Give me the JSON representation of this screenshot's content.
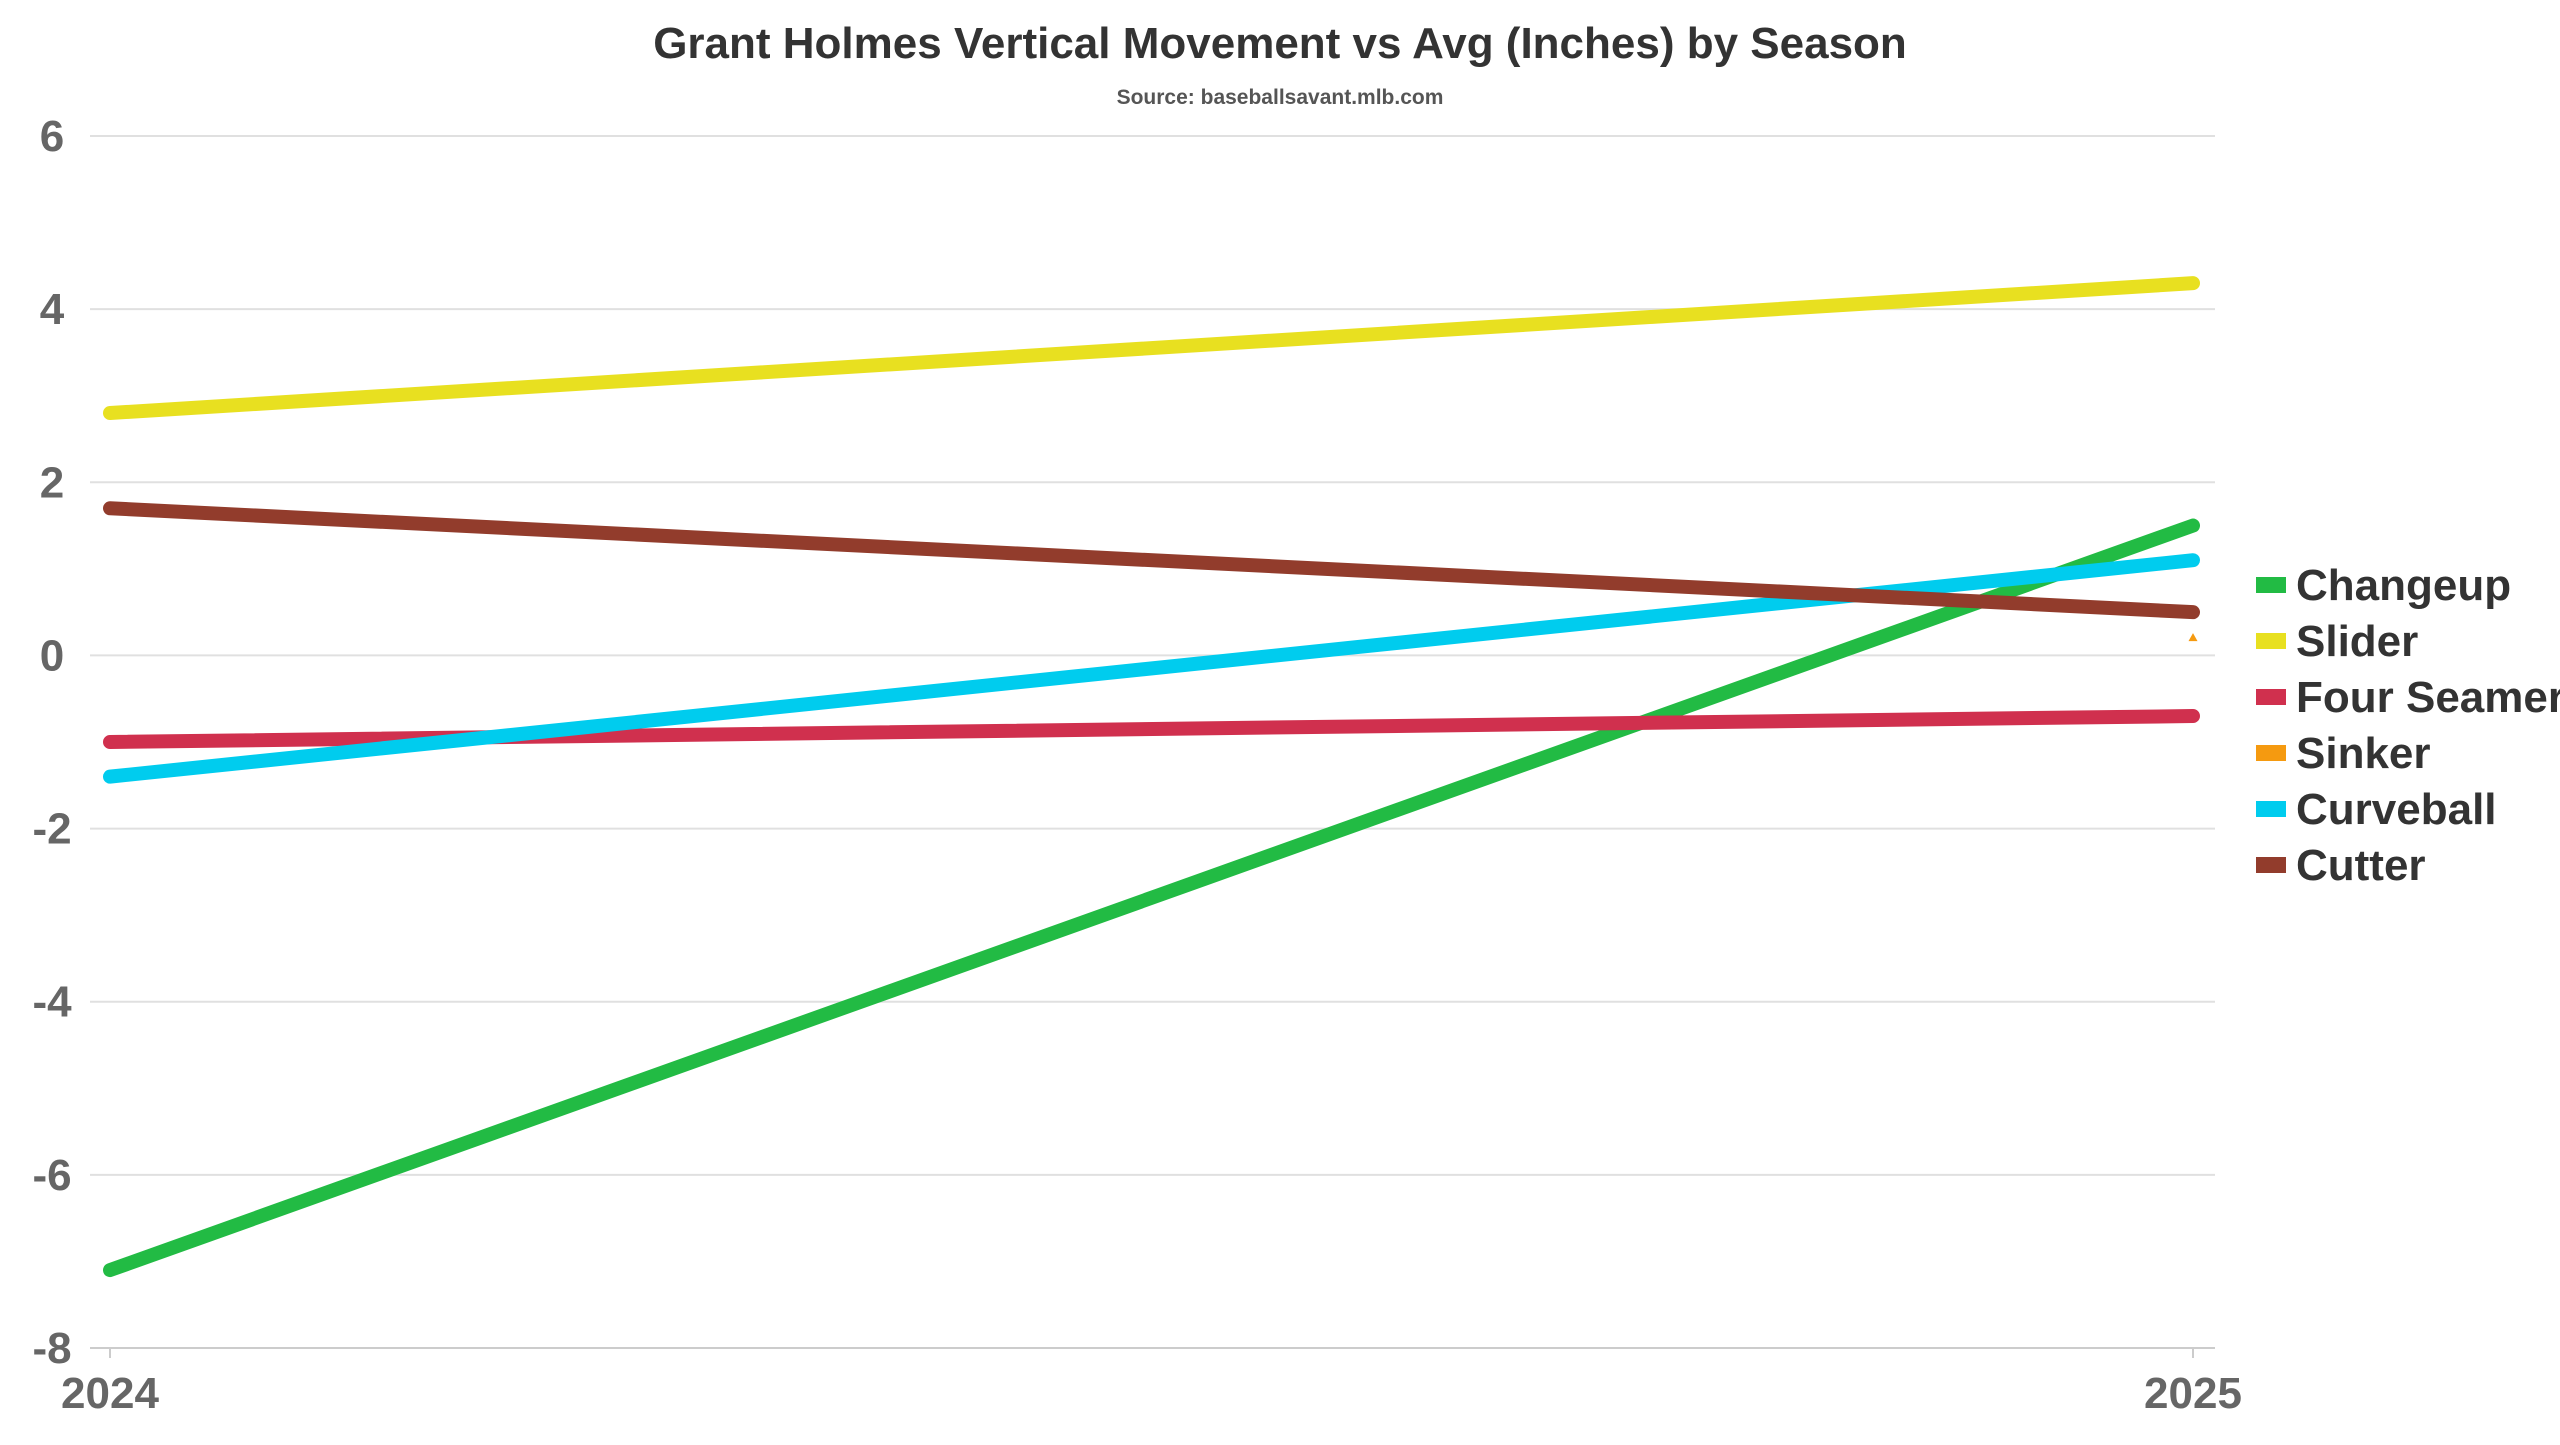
{
  "chart_data": {
    "type": "line",
    "title": "Grant Holmes Vertical Movement vs Avg (Inches) by Season",
    "subtitle": "Source: baseballsavant.mlb.com",
    "xlabel": "",
    "ylabel": "",
    "x": [
      "2024",
      "2025"
    ],
    "ylim": [
      -8,
      6
    ],
    "yticks": [
      6,
      4,
      2,
      0,
      -2,
      -4,
      -6,
      -8
    ],
    "grid": true,
    "legend_position": "right",
    "series": [
      {
        "name": "Changeup",
        "color": "#22bb44",
        "values": [
          -7.1,
          1.5
        ]
      },
      {
        "name": "Slider",
        "color": "#e8e020",
        "values": [
          2.8,
          4.3
        ]
      },
      {
        "name": "Four Seamer",
        "color": "#d0304e",
        "values": [
          -1.0,
          -0.7
        ]
      },
      {
        "name": "Sinker",
        "color": "#f59a10",
        "values": [
          null,
          0.2
        ]
      },
      {
        "name": "Curveball",
        "color": "#00ccee",
        "values": [
          -1.4,
          1.1
        ]
      },
      {
        "name": "Cutter",
        "color": "#923c2c",
        "values": [
          1.7,
          0.5
        ]
      }
    ]
  }
}
